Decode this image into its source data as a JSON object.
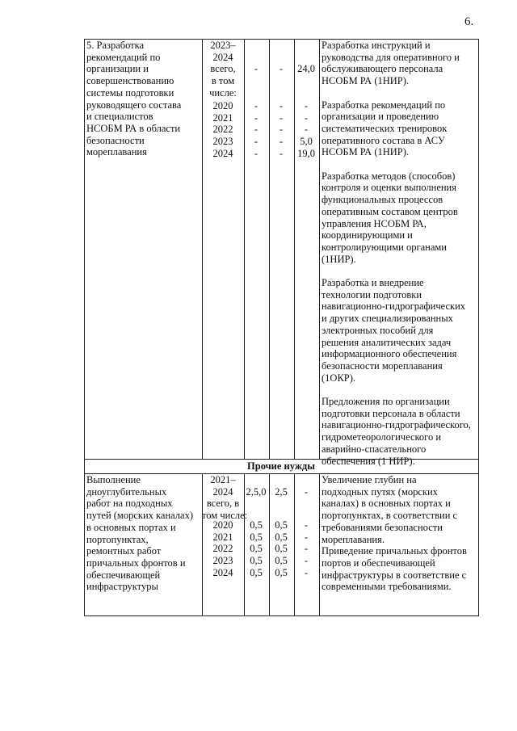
{
  "page_number": "6.",
  "table": {
    "rows": [
      {
        "name": "5. Разработка\nрекомендаций по\nорганизации и\nсовершенствованию\nсистемы подготовки\nруководящего состава\nи специалистов\nНСОБМ РА в области\nбезопасности\nмореплавания",
        "period": "2023–\n2024\nвсего,\nв том\nчисле:",
        "total": [
          "-",
          "-",
          "24,0"
        ],
        "years": [
          {
            "year": "2020",
            "values": [
              "-",
              "-",
              "-"
            ]
          },
          {
            "year": "2021",
            "values": [
              "-",
              "-",
              "-"
            ]
          },
          {
            "year": "2022",
            "values": [
              "-",
              "-",
              "-"
            ]
          },
          {
            "year": "2023",
            "values": [
              "-",
              "-",
              "5,0"
            ]
          },
          {
            "year": "2024",
            "values": [
              "-",
              "-",
              "19,0"
            ]
          }
        ],
        "results": [
          "Разработка инструкций и\nруководства для оперативного и\nобслуживающего персонала\nНСОБМ РА (1НИР).",
          "Разработка рекомендаций по\nорганизации и проведению\nсистематических тренировок\nоперативного состава в АСУ\nНСОБМ РА (1НИР).",
          "Разработка методов (способов)\nконтроля и оценки выполнения\nфункциональных процессов\nоперативным составом центров\nуправления НСОБМ РА,\nкоординирующими и\nконтролирующими органами\n(1НИР).",
          "Разработка и внедрение\nтехнологии подготовки\nнавигационно-гидрографических\nи других специализированных\nэлектронных пособий для\nрешения аналитических задач\nинформационного обеспечения\nбезопасности мореплавания\n(1ОКР).",
          "Предложения по организации\nподготовки персонала в области\nнавигационно-гидрографического,\nгидрометеорологического и\nаварийно-спасательного\nобеспечения (1 НИР)."
        ]
      }
    ],
    "section": "Прочие нужды",
    "section_rows": [
      {
        "name": "Выполнение\nдноуглубительных\nработ на подходных\nпутей (морских каналах)\nв основных портах и\nпортопунктах,\nремонтных работ\nпричальных фронтов и\nобеспечивающей\nинфраструктуры",
        "period": "2021–\n2024\nвсего, в\nтом числе:",
        "total": [
          "2,5,0",
          "2,5",
          "-"
        ],
        "years": [
          {
            "year": "2020",
            "values": [
              "0,5",
              "0,5",
              "-"
            ]
          },
          {
            "year": "2021",
            "values": [
              "0,5",
              "0,5",
              "-"
            ]
          },
          {
            "year": "2022",
            "values": [
              "0,5",
              "0,5",
              "-"
            ]
          },
          {
            "year": "2023",
            "values": [
              "0,5",
              "0,5",
              "-"
            ]
          },
          {
            "year": "2024",
            "values": [
              "0,5",
              "0,5",
              "-"
            ]
          }
        ],
        "results": [
          "Увеличение глубин на\nподходных путях (морских\nканалах) в основных портах и\nпортопунктах, в соответствии с\nтребованиями безопасности\nмореплавания.",
          "Приведение причальных фронтов\nпортов и обеспечивающей\nинфраструктуры в соответствие с\nсовременными требованиями."
        ]
      }
    ]
  }
}
